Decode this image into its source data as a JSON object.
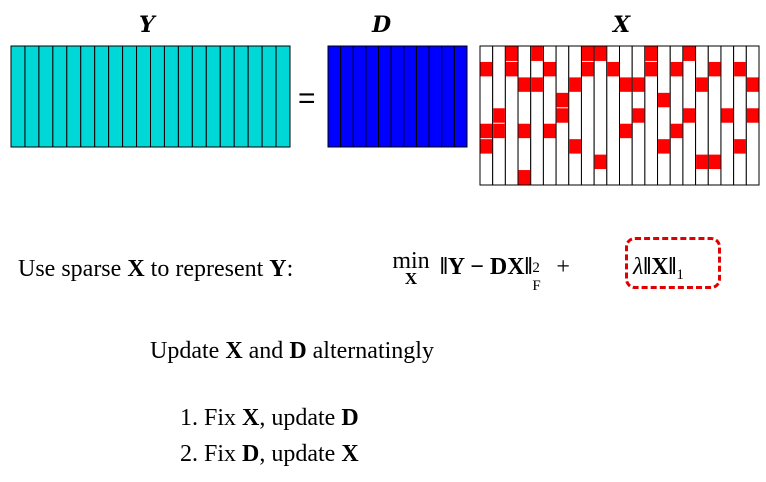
{
  "matrices": {
    "y_label": "Y",
    "d_label": "D",
    "x_label": "X",
    "equals": "=",
    "y_color": "#00d8d8",
    "d_color": "#0000ff",
    "x_color": "#ffffff",
    "sparse_color": "#ff0000",
    "y_columns": 20,
    "d_columns": 11,
    "x_columns": 22,
    "x_rows": 9,
    "x_sparse_cells": [
      [
        0,
        1
      ],
      [
        0,
        5
      ],
      [
        0,
        6
      ],
      [
        1,
        4
      ],
      [
        1,
        5
      ],
      [
        2,
        0
      ],
      [
        2,
        1
      ],
      [
        3,
        2
      ],
      [
        3,
        5
      ],
      [
        3,
        8
      ],
      [
        4,
        0
      ],
      [
        4,
        2
      ],
      [
        5,
        1
      ],
      [
        5,
        5
      ],
      [
        6,
        3
      ],
      [
        6,
        4
      ],
      [
        7,
        2
      ],
      [
        7,
        6
      ],
      [
        8,
        0
      ],
      [
        8,
        1
      ],
      [
        9,
        0
      ],
      [
        9,
        7
      ],
      [
        10,
        1
      ],
      [
        11,
        2
      ],
      [
        11,
        5
      ],
      [
        12,
        2
      ],
      [
        12,
        4
      ],
      [
        13,
        0
      ],
      [
        13,
        1
      ],
      [
        14,
        3
      ],
      [
        14,
        6
      ],
      [
        15,
        1
      ],
      [
        15,
        5
      ],
      [
        16,
        0
      ],
      [
        16,
        4
      ],
      [
        17,
        2
      ],
      [
        17,
        7
      ],
      [
        18,
        1
      ],
      [
        18,
        7
      ],
      [
        19,
        4
      ],
      [
        20,
        1
      ],
      [
        20,
        6
      ],
      [
        21,
        2
      ],
      [
        21,
        4
      ]
    ]
  },
  "objective": {
    "prefix": "Use sparse",
    "x_sym": "X",
    "middle": "to represent",
    "y_sym": "Y",
    "colon": ":",
    "min": "min",
    "min_sub": "X",
    "norm_main": "‖Y − DX‖",
    "sup": "2",
    "sub_f": "F",
    "plus": "+",
    "lambda": "λ",
    "reg_norm": "‖X‖",
    "reg_sub": "1"
  },
  "steps": {
    "intro_pre": "Update",
    "intro_x": "X",
    "intro_and": "and",
    "intro_d": "D",
    "intro_post": "alternatingly",
    "step1_num": "1. Fix",
    "step1_fix": "X",
    "step1_mid": ", update",
    "step1_upd": "D",
    "step2_num": "2. Fix",
    "step2_fix": "D",
    "step2_mid": ", update",
    "step2_upd": "X"
  }
}
